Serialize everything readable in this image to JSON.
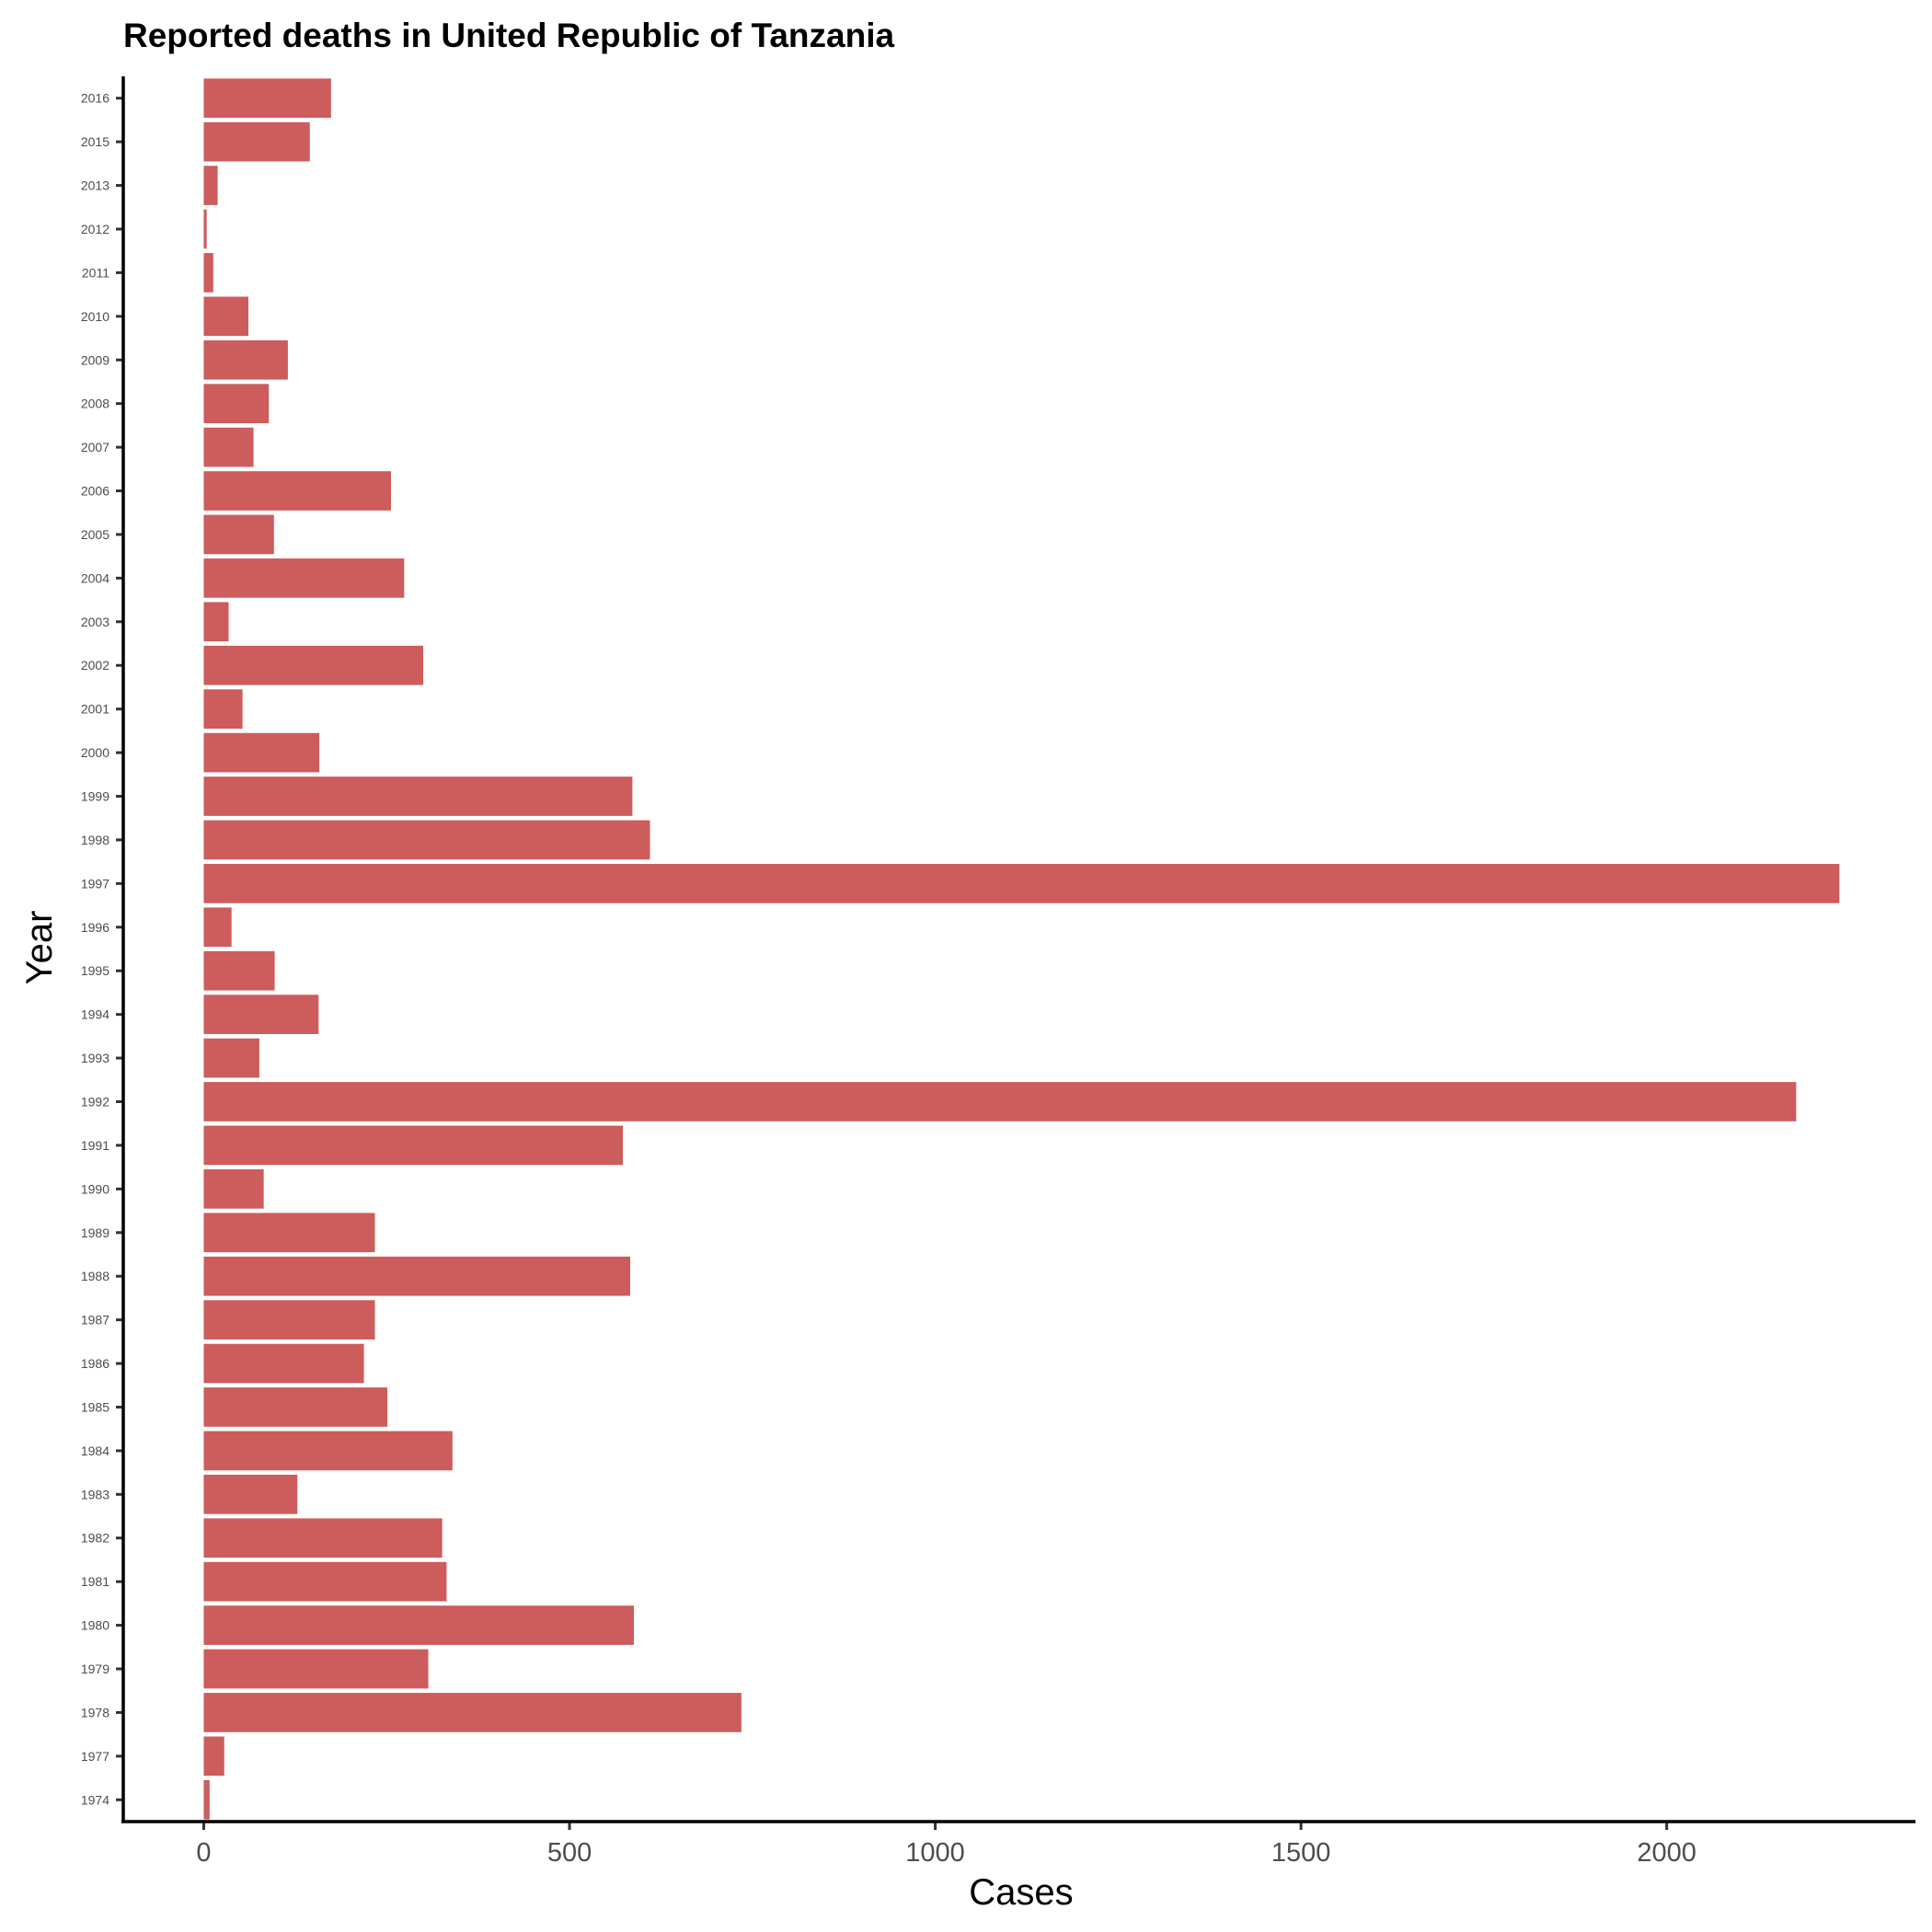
{
  "chart_data": {
    "type": "bar",
    "orientation": "horizontal",
    "title": "Reported deaths in United Republic of Tanzania",
    "xlabel": "Cases",
    "ylabel": "Year",
    "categories": [
      "1974",
      "1977",
      "1978",
      "1979",
      "1980",
      "1981",
      "1982",
      "1983",
      "1984",
      "1985",
      "1986",
      "1987",
      "1988",
      "1989",
      "1990",
      "1991",
      "1992",
      "1993",
      "1994",
      "1995",
      "1996",
      "1997",
      "1998",
      "1999",
      "2000",
      "2001",
      "2002",
      "2003",
      "2004",
      "2005",
      "2006",
      "2007",
      "2008",
      "2009",
      "2010",
      "2011",
      "2012",
      "2013",
      "2015",
      "2016"
    ],
    "values": [
      8,
      28,
      735,
      307,
      588,
      332,
      326,
      128,
      340,
      251,
      219,
      234,
      583,
      234,
      82,
      573,
      2177,
      76,
      157,
      97,
      38,
      2236,
      610,
      586,
      158,
      53,
      300,
      34,
      274,
      96,
      256,
      68,
      89,
      115,
      61,
      13,
      4,
      19,
      145,
      174
    ],
    "x_ticks": [
      "0",
      "500",
      "1000",
      "1500",
      "2000"
    ],
    "x_tick_values": [
      0,
      500,
      1000,
      1500,
      2000
    ],
    "xlim": [
      -110,
      2340
    ],
    "bar_color": "#cd5c5c",
    "grid": false,
    "legend": "none"
  }
}
